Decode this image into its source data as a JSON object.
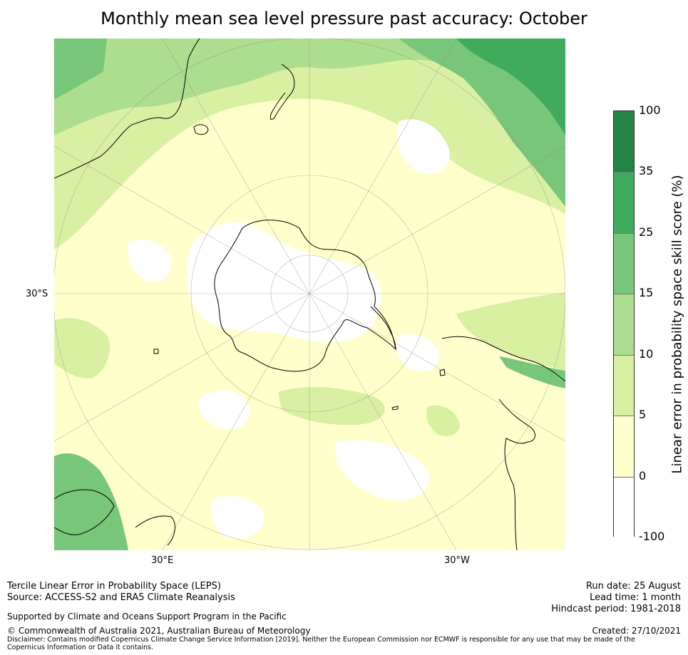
{
  "title": "Monthly mean sea level pressure past accuracy: October",
  "map": {
    "projection": "south-polar-stereographic",
    "lat_label": "30°S",
    "lon_labels": [
      "30°E",
      "30°W"
    ],
    "land_color": "#ffffff",
    "coastline_color": "#000000"
  },
  "colorbar": {
    "label": "Linear error in probability space skill score (%)",
    "ticks": [
      "100",
      "35",
      "25",
      "15",
      "10",
      "5",
      "0",
      "-100"
    ],
    "bins": [
      {
        "from": -100,
        "to": 0,
        "color": "#ffffff"
      },
      {
        "from": 0,
        "to": 5,
        "color": "#ffffcc"
      },
      {
        "from": 5,
        "to": 10,
        "color": "#d9f0a3"
      },
      {
        "from": 10,
        "to": 15,
        "color": "#addd8e"
      },
      {
        "from": 15,
        "to": 25,
        "color": "#78c679"
      },
      {
        "from": 25,
        "to": 35,
        "color": "#41ab5d"
      },
      {
        "from": 35,
        "to": 100,
        "color": "#238443"
      }
    ]
  },
  "footer": {
    "left1": "Tercile Linear Error in Probability Space (LEPS)",
    "left2": "Source: ACCESS-S2 and ERA5 Climate Reanalysis",
    "support": "Supported by Climate and Oceans Support Program in the Pacific",
    "copyright": "© Commonwealth of Australia 2021, Australian Bureau of Meteorology",
    "disclaimer": "Disclaimer: Contains modified Copernicus Climate Change Service Information [2019]. Neither the European Commission nor ECMWF is responsible for any use that may be made of the Copernicus Information or Data it contains.",
    "run_date": "Run date: 25 August",
    "lead_time": "Lead time: 1 month",
    "hindcast": "Hindcast period: 1981-2018",
    "created": "Created: 27/10/2021"
  }
}
